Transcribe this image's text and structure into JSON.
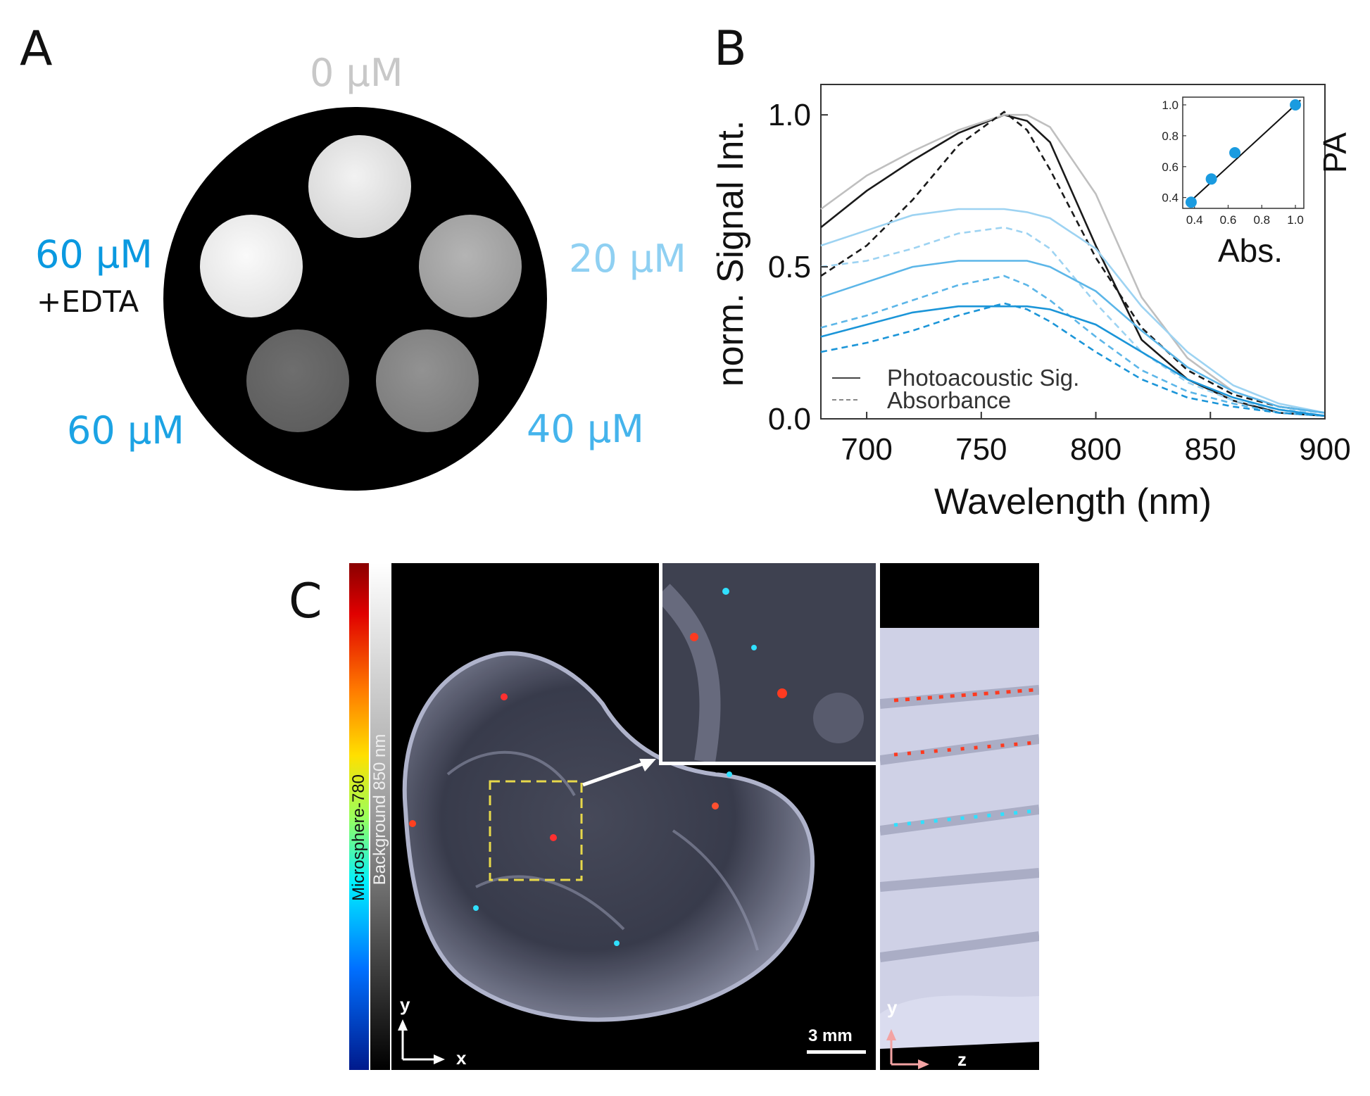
{
  "panel_a": {
    "letter": "A",
    "labels": {
      "top": "0 µM",
      "right": "20 µM",
      "bottom_right": "40 µM",
      "bottom_left": "60 µM",
      "left_line1": "60 µM",
      "left_line2": "+EDTA"
    },
    "colors": {
      "top": "#c8c8c8",
      "right": "#8fd0f2",
      "bottom_right": "#45b4ec",
      "bottom_left": "#1ca3e4",
      "left": "#0a99e0"
    }
  },
  "panel_b": {
    "letter": "B"
  },
  "panel_c": {
    "letter": "C",
    "colorbar_label_1": "Microsphere-780",
    "colorbar_label_2": "Background 850 nm",
    "axis_y": "y",
    "axis_x": "x",
    "axis_y2": "y",
    "axis_z": "z",
    "scalebar": "3 mm"
  },
  "chart_data": [
    {
      "type": "line",
      "ylabel": "norm. Signal Int.",
      "xlabel": "Wavelength (nm)",
      "xlim": [
        680,
        900
      ],
      "ylim": [
        0,
        1.1
      ],
      "xticks": [
        700,
        750,
        800,
        850,
        900
      ],
      "yticks": [
        0.0,
        0.5,
        1.0
      ],
      "legend": {
        "position": "bottom-left",
        "entries": [
          "Photoacoustic Sig.",
          "Absorbance"
        ]
      },
      "series_colors": [
        "#1a1a1a",
        "#bfbfbf",
        "#9dd3f2",
        "#5cb6e8",
        "#1b95d8"
      ],
      "x": [
        680,
        700,
        720,
        740,
        760,
        770,
        780,
        800,
        820,
        840,
        860,
        880,
        900
      ],
      "series": [
        {
          "values": [
            0.63,
            0.75,
            0.85,
            0.94,
            1.0,
            0.98,
            0.91,
            0.57,
            0.26,
            0.13,
            0.06,
            0.02,
            0.01
          ]
        },
        {
          "values": [
            0.69,
            0.8,
            0.88,
            0.95,
            1.0,
            1.0,
            0.96,
            0.74,
            0.4,
            0.2,
            0.09,
            0.04,
            0.02
          ]
        },
        {
          "values": [
            0.47,
            0.57,
            0.72,
            0.9,
            1.01,
            0.95,
            0.82,
            0.53,
            0.3,
            0.16,
            0.08,
            0.04,
            0.02
          ]
        },
        {
          "values": [
            0.57,
            0.62,
            0.67,
            0.69,
            0.69,
            0.68,
            0.66,
            0.56,
            0.37,
            0.22,
            0.11,
            0.05,
            0.02
          ]
        },
        {
          "values": [
            0.5,
            0.52,
            0.56,
            0.61,
            0.63,
            0.61,
            0.56,
            0.38,
            0.22,
            0.12,
            0.06,
            0.03,
            0.02
          ]
        },
        {
          "values": [
            0.4,
            0.45,
            0.5,
            0.52,
            0.52,
            0.52,
            0.5,
            0.42,
            0.29,
            0.17,
            0.09,
            0.04,
            0.02
          ]
        },
        {
          "values": [
            0.3,
            0.34,
            0.39,
            0.44,
            0.47,
            0.44,
            0.39,
            0.27,
            0.16,
            0.09,
            0.05,
            0.02,
            0.01
          ]
        },
        {
          "values": [
            0.27,
            0.31,
            0.35,
            0.37,
            0.37,
            0.37,
            0.36,
            0.31,
            0.22,
            0.13,
            0.07,
            0.03,
            0.01
          ]
        },
        {
          "values": [
            0.22,
            0.25,
            0.29,
            0.34,
            0.38,
            0.36,
            0.32,
            0.22,
            0.13,
            0.07,
            0.04,
            0.02,
            0.01
          ]
        }
      ],
      "series_styles": [
        "solid",
        "solid",
        "dashed",
        "solid",
        "dashed",
        "solid",
        "dashed",
        "solid",
        "dashed"
      ],
      "series_color_index": [
        0,
        1,
        0,
        2,
        2,
        3,
        3,
        4,
        4
      ]
    },
    {
      "type": "scatter",
      "ylabel": "PA",
      "xlabel": "Abs.",
      "xlim": [
        0.33,
        1.05
      ],
      "ylim": [
        0.33,
        1.05
      ],
      "xticks": [
        0.4,
        0.6,
        0.8,
        1.0
      ],
      "yticks": [
        0.4,
        0.6,
        0.8,
        1.0
      ],
      "xtick_labels": [
        "0.4",
        "0.6",
        "0.8",
        "1.0"
      ],
      "ytick_labels": [
        "0.4",
        "0.6",
        "0.8",
        "1.0"
      ],
      "x": [
        0.38,
        0.5,
        0.64,
        1.0
      ],
      "y": [
        0.37,
        0.52,
        0.69,
        1.0
      ],
      "fit_line": {
        "x": [
          0.36,
          1.03
        ],
        "y": [
          0.36,
          1.03
        ]
      },
      "point_color": "#1a9be0"
    }
  ]
}
